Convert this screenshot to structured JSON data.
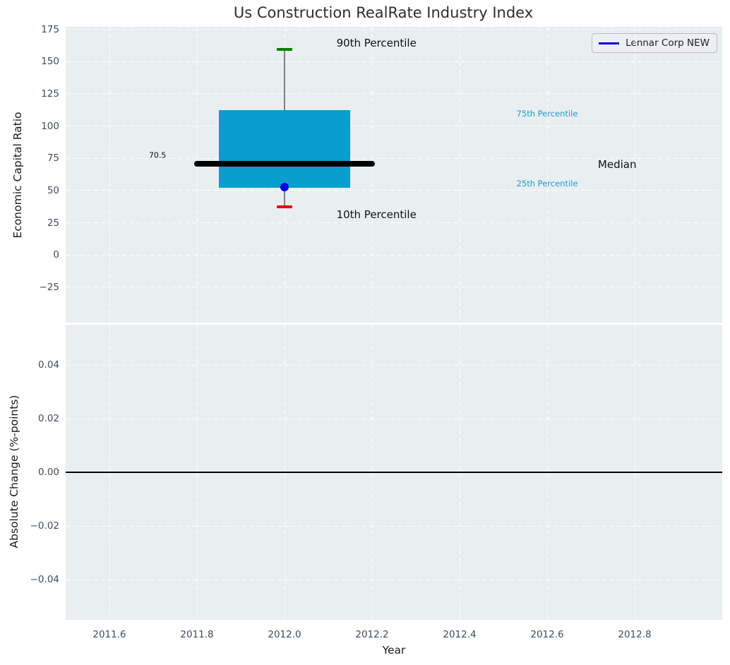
{
  "figure": {
    "title": "Us Construction RealRate Industry Index",
    "background": "#ffffff",
    "plot_background": "#e9eef0",
    "tick_color": "#3e4c5d"
  },
  "legend": {
    "label": "Lennar Corp NEW",
    "line_color": "#0000e0"
  },
  "chart_data": [
    {
      "type": "boxplot",
      "name": "economic-capital-ratio-panel",
      "ylabel": "Economic Capital Ratio",
      "xlabel": "Year",
      "xlim": [
        2011.5,
        2013.0
      ],
      "ylim": [
        -52.5,
        177.0
      ],
      "xticks": [
        2011.6,
        2011.8,
        2012.0,
        2012.2,
        2012.4,
        2012.6,
        2012.8
      ],
      "xtick_labels": [
        "2011.6",
        "2011.8",
        "2012.0",
        "2012.2",
        "2012.4",
        "2012.6",
        "2012.8"
      ],
      "yticks": [
        175,
        150,
        125,
        100,
        75,
        50,
        25,
        0,
        -25
      ],
      "ytick_labels": [
        "175",
        "150",
        "125",
        "100",
        "75",
        "50",
        "25",
        "0",
        "−25"
      ],
      "grid": {
        "style": "dashed",
        "color": "#ffffff"
      },
      "legend_position": "upper right",
      "box": {
        "x": 2012,
        "box_width": 0.3,
        "p90": 159.5,
        "p75": 112.5,
        "median": 70.5,
        "p25": 52.0,
        "p10": 37.5,
        "median_line_x": [
          2011.8,
          2012.2
        ],
        "median_label": "70.5",
        "box_color": "#099ecd",
        "whisker_color": "#828282",
        "cap_top_color": "#008000",
        "cap_bottom_color": "#e80000",
        "median_color": "#000000"
      },
      "company_point": {
        "name": "Lennar Corp NEW",
        "x": 2012,
        "y": 52.5,
        "color": "#0000e0"
      },
      "annotations": [
        {
          "text": "90th Percentile",
          "x": 2012.21,
          "y": 164.3,
          "color": "#111111",
          "font_size": 15
        },
        {
          "text": "10th Percentile",
          "x": 2012.21,
          "y": 31.5,
          "color": "#111111",
          "font_size": 15
        },
        {
          "text": "75th Percentile",
          "x": 2012.6,
          "y": 109.4,
          "color": "#1b9ecd",
          "font_size": 11.5
        },
        {
          "text": "25th Percentile",
          "x": 2012.6,
          "y": 55.2,
          "color": "#1b9ecd",
          "font_size": 11.5
        },
        {
          "text": "Median",
          "x": 2012.76,
          "y": 70.0,
          "color": "#111111",
          "font_size": 15
        },
        {
          "text": "70.5",
          "x": 2011.71,
          "y": 77.5,
          "color": "#111111",
          "font_size": 11
        }
      ]
    },
    {
      "type": "line",
      "name": "absolute-change-panel",
      "ylabel": "Absolute Change (%-points)",
      "xlabel": "Year",
      "xlim": [
        2011.5,
        2013.0
      ],
      "ylim": [
        -0.055,
        0.055
      ],
      "xticks": [
        2011.6,
        2011.8,
        2012.0,
        2012.2,
        2012.4,
        2012.6,
        2012.8
      ],
      "xtick_labels": [
        "2011.6",
        "2011.8",
        "2012.0",
        "2012.2",
        "2012.4",
        "2012.6",
        "2012.8"
      ],
      "yticks": [
        0.04,
        0.02,
        0.0,
        -0.02,
        -0.04
      ],
      "ytick_labels": [
        "0.04",
        "0.02",
        "0.00",
        "−0.02",
        "−0.04"
      ],
      "grid": {
        "style": "dashed",
        "color": "#ffffff"
      },
      "zero_line": {
        "y": 0.0,
        "color": "#000000"
      },
      "series": []
    }
  ]
}
